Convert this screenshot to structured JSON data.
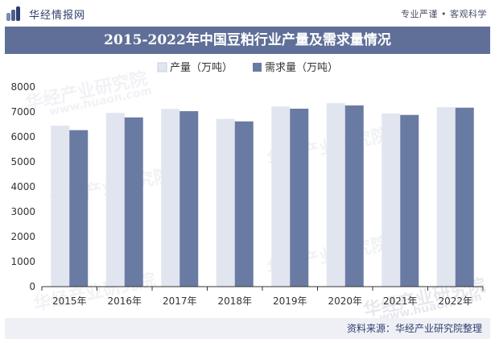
{
  "header": {
    "brand": "华经情报网",
    "tagline": "专业严谨 • 客观科学"
  },
  "chart_data": {
    "type": "bar",
    "title": "2015-2022年中国豆粕行业产量及需求量情况",
    "categories": [
      "2015年",
      "2016年",
      "2017年",
      "2018年",
      "2019年",
      "2020年",
      "2021年",
      "2022年"
    ],
    "series": [
      {
        "name": "产量（万吨）",
        "values": [
          6450,
          6960,
          7120,
          6720,
          7220,
          7350,
          6940,
          7190
        ],
        "color": "#e1e5ef"
      },
      {
        "name": "需求量（万吨）",
        "values": [
          6270,
          6780,
          7030,
          6620,
          7130,
          7260,
          6880,
          7170
        ],
        "color": "#6a7ba3"
      }
    ],
    "ylim": [
      0,
      8000
    ],
    "yticks": [
      0,
      1000,
      2000,
      3000,
      4000,
      5000,
      6000,
      7000,
      8000
    ],
    "legend_position": "top-center",
    "grid": false
  },
  "watermark": "华经产业研究院",
  "watermark_url": "www.huaon.com",
  "footer": {
    "source": "资料来源：华经产业研究院整理"
  }
}
